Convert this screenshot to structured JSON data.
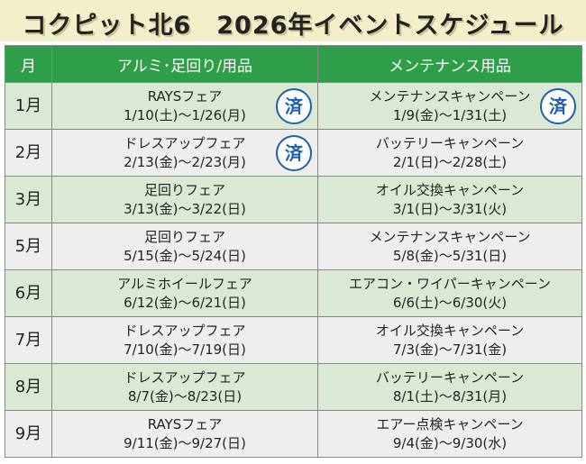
{
  "header": {
    "title": "コクピット北6　2026年イベントスケジュール"
  },
  "table": {
    "columns": [
      "月",
      "アルミ･足回り/用品",
      "メンテナンス用品"
    ],
    "rows": [
      {
        "month": "1月",
        "fair": "RAYSフェア",
        "fair_dates": "1/10(土)～1/26(月)",
        "fair_badge": "済",
        "campaign": "メンテナンスキャンペーン",
        "campaign_dates": "1/9(金)～1/31(土)",
        "campaign_badge": "済"
      },
      {
        "month": "2月",
        "fair": "ドレスアップフェア",
        "fair_dates": "2/13(金)～2/23(月)",
        "fair_badge": "済",
        "campaign": "バッテリーキャンペーン",
        "campaign_dates": "2/1(日)～2/28(土)"
      },
      {
        "month": "3月",
        "fair": "足回りフェア",
        "fair_dates": "3/13(金)～3/22(日)",
        "campaign": "オイル交換キャンペーン",
        "campaign_dates": "3/1(日)～3/31(火)"
      },
      {
        "month": "5月",
        "fair": "足回りフェア",
        "fair_dates": "5/15(金)～5/24(日)",
        "campaign": "メンテナンスキャンペーン",
        "campaign_dates": "5/8(金)～5/31(日)"
      },
      {
        "month": "6月",
        "fair": "アルミホイールフェア",
        "fair_dates": "6/12(金)～6/21(日)",
        "campaign": "エアコン・ワイパーキャンペーン",
        "campaign_dates": "6/6(土)～6/30(火)"
      },
      {
        "month": "7月",
        "fair": "ドレスアップフェア",
        "fair_dates": "7/10(金)～7/19(日)",
        "campaign": "オイル交換キャンペーン",
        "campaign_dates": "7/3(金)～7/31(金)"
      },
      {
        "month": "8月",
        "fair": "ドレスアップフェア",
        "fair_dates": "8/7(金)～8/23(日)",
        "campaign": "バッテリーキャンペーン",
        "campaign_dates": "8/1(土)～8/31(月)"
      },
      {
        "month": "9月",
        "fair": "RAYSフェア",
        "fair_dates": "9/11(金)～9/27(日)",
        "campaign": "エアー点検キャンペーン",
        "campaign_dates": "9/4(金)～9/30(水)"
      }
    ]
  }
}
